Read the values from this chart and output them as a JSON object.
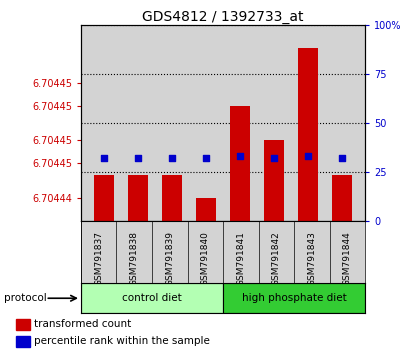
{
  "title": "GDS4812 / 1392733_at",
  "samples": [
    "GSM791837",
    "GSM791838",
    "GSM791839",
    "GSM791840",
    "GSM791841",
    "GSM791842",
    "GSM791843",
    "GSM791844"
  ],
  "transformed_counts": [
    6.704442,
    6.704442,
    6.704442,
    6.70444,
    6.704448,
    6.704445,
    6.704453,
    6.704442
  ],
  "percentile_ranks": [
    32,
    32,
    32,
    32,
    33,
    32,
    33,
    32
  ],
  "ylim_left": [
    6.704438,
    6.704455
  ],
  "ylim_right": [
    0,
    100
  ],
  "yticks_left": [
    6.70444,
    6.704443,
    6.704445,
    6.704448,
    6.70445
  ],
  "yticks_left_labels": [
    "6.70444",
    "6.70445",
    "6.70445",
    "6.70445",
    "6.70445"
  ],
  "yticks_right": [
    0,
    25,
    50,
    75,
    100
  ],
  "yticks_right_labels": [
    "0",
    "25",
    "50",
    "75",
    "100%"
  ],
  "bar_color": "#cc0000",
  "square_color": "#0000cc",
  "bar_bottom": 6.704438,
  "groups": [
    {
      "label": "control diet",
      "indices": [
        0,
        1,
        2,
        3
      ],
      "color": "#b3ffb3"
    },
    {
      "label": "high phosphate diet",
      "indices": [
        4,
        5,
        6,
        7
      ],
      "color": "#33cc33"
    }
  ],
  "protocol_label": "protocol",
  "legend_bar_label": "transformed count",
  "legend_square_label": "percentile rank within the sample",
  "title_fontsize": 10,
  "axis_color_left": "#cc0000",
  "axis_color_right": "#0000cc",
  "bg_color": "#d3d3d3"
}
